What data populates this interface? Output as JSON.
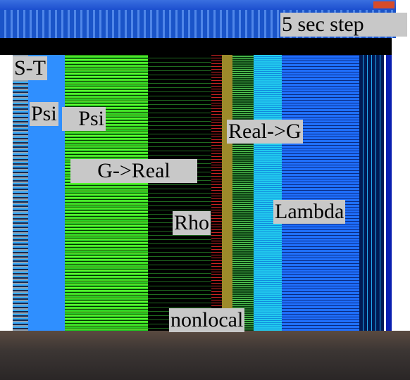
{
  "annotations": {
    "step": "5 sec step",
    "st": "S-T",
    "psi_1": "Psi",
    "psi_2": "Psi",
    "real_to_g": "Real->G",
    "g_to_real": "G->Real",
    "rho": "Rho",
    "lambda": "Lambda",
    "nonlocal": "nonlocal"
  }
}
